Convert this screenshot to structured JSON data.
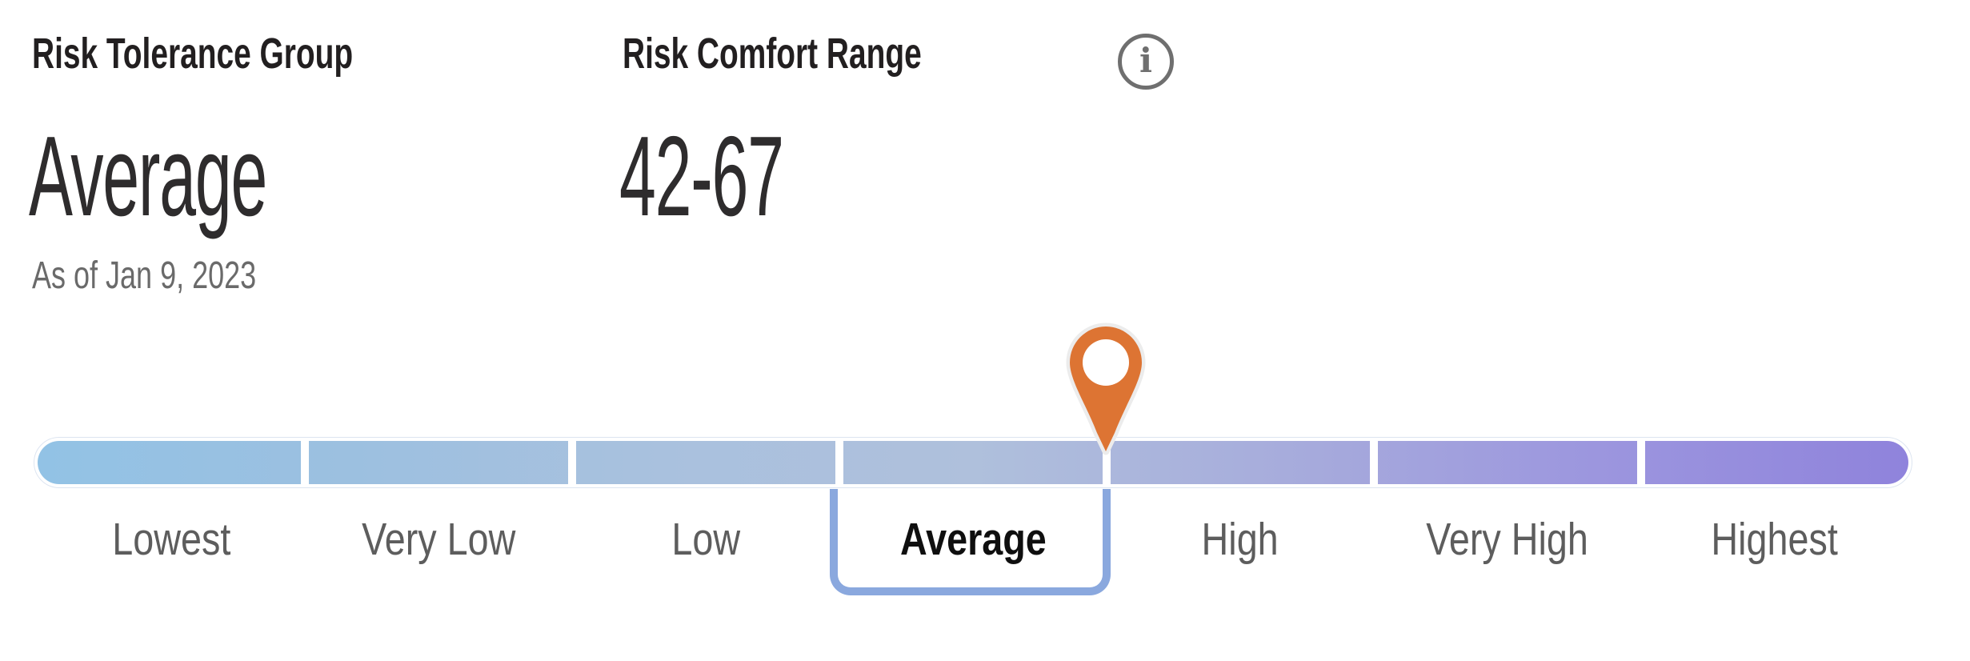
{
  "risk_tolerance_group": {
    "title": "Risk Tolerance Group",
    "value": "Average",
    "as_of": "As of Jan 9, 2023"
  },
  "risk_comfort_range": {
    "title": "Risk Comfort Range",
    "value": "42-67",
    "info_icon_glyph": "i"
  },
  "scale": {
    "labels": [
      "Lowest",
      "Very Low",
      "Low",
      "Average",
      "High",
      "Very High",
      "Highest"
    ],
    "selected": "Average",
    "selected_index": 3,
    "marker": {
      "name": "location-pin-marker",
      "position_fraction": 0.5714
    },
    "colors": {
      "gradient": [
        "#92C2E5",
        "#9CC0E0",
        "#A9C1DE",
        "#AFC0DC",
        "#A7ACDC",
        "#9C96DE",
        "#8F83DC"
      ],
      "bracket": "#8AA8DE",
      "pin_fill": "#DD7433",
      "pin_halo": "#ECECEC",
      "pin_hole": "#FFFFFF"
    }
  }
}
